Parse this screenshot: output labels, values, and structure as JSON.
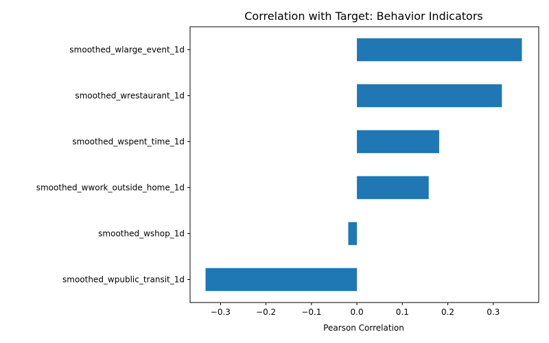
{
  "chart_data": {
    "type": "bar",
    "orientation": "horizontal",
    "title": "Correlation with Target: Behavior Indicators",
    "xlabel": "Pearson Correlation",
    "ylabel": "",
    "categories": [
      "smoothed_wlarge_event_1d",
      "smoothed_wrestaurant_1d",
      "smoothed_wspent_time_1d",
      "smoothed_wwork_outside_home_1d",
      "smoothed_wshop_1d",
      "smoothed_wpublic_transit_1d"
    ],
    "values": [
      0.363,
      0.319,
      0.181,
      0.158,
      -0.019,
      -0.333
    ],
    "xlim": [
      -0.367,
      0.4
    ],
    "xticks": [
      -0.3,
      -0.2,
      -0.1,
      0.0,
      0.1,
      0.2,
      0.3
    ],
    "xtick_labels": [
      "−0.3",
      "−0.2",
      "−0.1",
      "0.0",
      "0.1",
      "0.2",
      "0.3"
    ],
    "bar_color": "#1f77b4",
    "grid": false,
    "legend": "none"
  }
}
